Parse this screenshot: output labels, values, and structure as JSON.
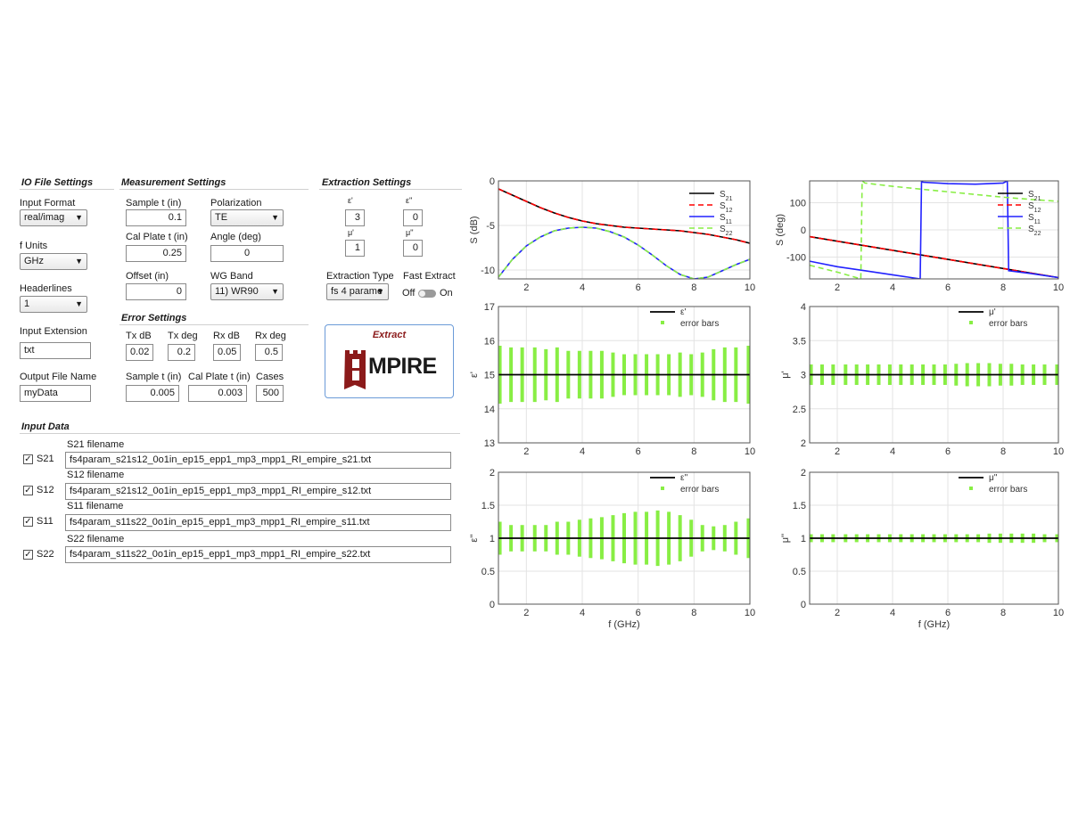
{
  "io": {
    "title": "IO File Settings",
    "input_format_label": "Input Format",
    "input_format_value": "real/imag",
    "f_units_label": "f Units",
    "f_units_value": "GHz",
    "headerlines_label": "Headerlines",
    "headerlines_value": "1",
    "input_ext_label": "Input Extension",
    "input_ext_value": "txt",
    "output_label": "Output File Name",
    "output_value": "myData"
  },
  "meas": {
    "title": "Measurement Settings",
    "sample_t_label": "Sample t (in)",
    "sample_t_value": "0.1",
    "polarization_label": "Polarization",
    "polarization_value": "TE",
    "cal_plate_label": "Cal Plate t (in)",
    "cal_plate_value": "0.25",
    "angle_label": "Angle (deg)",
    "angle_value": "0",
    "offset_label": "Offset (in)",
    "offset_value": "0",
    "wg_band_label": "WG Band",
    "wg_band_value": "11) WR90"
  },
  "err": {
    "title": "Error Settings",
    "txdb_label": "Tx dB",
    "txdb_value": "0.02",
    "txdeg_label": "Tx deg",
    "txdeg_value": "0.2",
    "rxdb_label": "Rx dB",
    "rxdb_value": "0.05",
    "rxdeg_label": "Rx deg",
    "rxdeg_value": "0.5",
    "sample_t_label": "Sample t (in)",
    "sample_t_value": "0.005",
    "cal_plate_label": "Cal Plate t (in)",
    "cal_plate_value": "0.003",
    "cases_label": "Cases",
    "cases_value": "500"
  },
  "ext": {
    "title": "Extraction Settings",
    "eps1_label": "ε'",
    "eps1_value": "3",
    "eps2_label": "ε''",
    "eps2_value": "0",
    "mu1_label": "μ'",
    "mu1_value": "1",
    "mu2_label": "μ''",
    "mu2_value": "0",
    "type_label": "Extraction Type",
    "type_value": "fs 4 parame",
    "fast_label": "Fast Extract",
    "off_label": "Off",
    "on_label": "On",
    "extract_label": "Extract",
    "logo_text": "MPIRE"
  },
  "input_data": {
    "title": "Input Data",
    "rows": [
      {
        "check": "S21",
        "label": "S21 filename",
        "file": "fs4param_s21s12_0o1in_ep15_epp1_mp3_mpp1_RI_empire_s21.txt"
      },
      {
        "check": "S12",
        "label": "S12 filename",
        "file": "fs4param_s21s12_0o1in_ep15_epp1_mp3_mpp1_RI_empire_s12.txt"
      },
      {
        "check": "S11",
        "label": "S11 filename",
        "file": "fs4param_s11s22_0o1in_ep15_epp1_mp3_mpp1_RI_empire_s11.txt"
      },
      {
        "check": "S22",
        "label": "S22 filename",
        "file": "fs4param_s11s22_0o1in_ep15_epp1_mp3_mpp1_RI_empire_s22.txt"
      }
    ]
  },
  "colors": {
    "s21": "#000000",
    "s12": "#ff0000",
    "s11": "#2222ff",
    "s22": "#88ee44",
    "err": "#88ee44"
  },
  "chart_data": [
    {
      "type": "line",
      "ylabel": "S (dB)",
      "xlim": [
        1,
        10
      ],
      "ylim": [
        -11,
        0
      ],
      "xticks": [
        2,
        4,
        6,
        8,
        10
      ],
      "yticks": [
        0,
        -5,
        -10
      ],
      "grid": true,
      "legend": "top-right",
      "legend_names": [
        "S21",
        "S12",
        "S11",
        "S22"
      ],
      "x": [
        1,
        1.5,
        2,
        2.5,
        3,
        3.5,
        4,
        4.5,
        5,
        5.5,
        6,
        6.5,
        7,
        7.5,
        8,
        8.5,
        9,
        9.5,
        10
      ],
      "series": [
        {
          "name": "S21",
          "values": [
            -0.9,
            -1.6,
            -2.3,
            -3.0,
            -3.6,
            -4.1,
            -4.5,
            -4.8,
            -5.0,
            -5.2,
            -5.3,
            -5.4,
            -5.5,
            -5.6,
            -5.8,
            -6.0,
            -6.3,
            -6.6,
            -7.0
          ]
        },
        {
          "name": "S12",
          "values": [
            -0.9,
            -1.6,
            -2.3,
            -3.0,
            -3.6,
            -4.1,
            -4.5,
            -4.8,
            -5.0,
            -5.2,
            -5.3,
            -5.4,
            -5.5,
            -5.6,
            -5.8,
            -6.0,
            -6.3,
            -6.6,
            -7.0
          ]
        },
        {
          "name": "S11",
          "values": [
            -10.8,
            -8.8,
            -7.3,
            -6.3,
            -5.6,
            -5.3,
            -5.2,
            -5.3,
            -5.7,
            -6.3,
            -7.2,
            -8.3,
            -9.5,
            -10.5,
            -11.0,
            -10.8,
            -10.1,
            -9.4,
            -8.8
          ]
        },
        {
          "name": "S22",
          "values": [
            -10.8,
            -8.8,
            -7.3,
            -6.3,
            -5.6,
            -5.3,
            -5.2,
            -5.3,
            -5.7,
            -6.3,
            -7.2,
            -8.3,
            -9.5,
            -10.5,
            -11.0,
            -10.8,
            -10.1,
            -9.4,
            -8.8
          ]
        }
      ]
    },
    {
      "type": "line",
      "ylabel": "S (deg)",
      "xlim": [
        1,
        10
      ],
      "ylim": [
        -180,
        180
      ],
      "xticks": [
        2,
        4,
        6,
        8,
        10
      ],
      "yticks": [
        100,
        0,
        -100
      ],
      "grid": true,
      "legend": "top-right",
      "legend_names": [
        "S21",
        "S12",
        "S11",
        "S22"
      ],
      "series": [
        {
          "name": "S21",
          "x": [
            1,
            10
          ],
          "values": [
            -25,
            -175
          ]
        },
        {
          "name": "S12",
          "x": [
            1,
            10
          ],
          "values": [
            -25,
            -175
          ]
        },
        {
          "name": "S11",
          "x": [
            1,
            2,
            3,
            4,
            5,
            5.05,
            5.1,
            6,
            7,
            8,
            8.15,
            8.2,
            9,
            10
          ],
          "values": [
            -115,
            -135,
            -150,
            -165,
            -180,
            180,
            175,
            170,
            168,
            172,
            180,
            -150,
            -160,
            -175
          ]
        },
        {
          "name": "S22",
          "x": [
            1,
            2,
            2.85,
            2.9,
            3,
            4,
            5,
            6,
            7,
            8,
            9,
            10
          ],
          "values": [
            -130,
            -155,
            -180,
            180,
            172,
            160,
            150,
            140,
            130,
            120,
            112,
            105
          ]
        }
      ]
    },
    {
      "type": "scatter",
      "ylabel": "ε'",
      "xlim": [
        1,
        10
      ],
      "ylim": [
        13,
        17
      ],
      "xticks": [
        2,
        4,
        6,
        8,
        10
      ],
      "yticks": [
        13,
        14,
        15,
        16,
        17
      ],
      "grid": true,
      "legend": "top-right",
      "legend_names": [
        "ε'",
        "error bars"
      ],
      "line_value": 15,
      "x": [
        1.05,
        1.45,
        1.85,
        2.3,
        2.7,
        3.1,
        3.5,
        3.9,
        4.3,
        4.7,
        5.1,
        5.5,
        5.9,
        6.3,
        6.7,
        7.1,
        7.5,
        7.9,
        8.3,
        8.7,
        9.1,
        9.5,
        9.95
      ],
      "err": [
        0.85,
        0.8,
        0.8,
        0.8,
        0.75,
        0.8,
        0.7,
        0.7,
        0.7,
        0.7,
        0.65,
        0.6,
        0.6,
        0.6,
        0.6,
        0.6,
        0.65,
        0.6,
        0.65,
        0.75,
        0.8,
        0.8,
        0.85
      ]
    },
    {
      "type": "scatter",
      "ylabel": "μ'",
      "xlim": [
        1,
        10
      ],
      "ylim": [
        2,
        4
      ],
      "xticks": [
        2,
        4,
        6,
        8,
        10
      ],
      "yticks": [
        2,
        2.5,
        3,
        3.5,
        4
      ],
      "grid": true,
      "legend": "top-right",
      "legend_names": [
        "μ'",
        "error bars"
      ],
      "line_value": 3,
      "x": [
        1.05,
        1.45,
        1.85,
        2.3,
        2.7,
        3.1,
        3.5,
        3.9,
        4.3,
        4.7,
        5.1,
        5.5,
        5.9,
        6.3,
        6.7,
        7.1,
        7.5,
        7.9,
        8.3,
        8.7,
        9.1,
        9.5,
        9.95
      ],
      "err": [
        0.15,
        0.15,
        0.15,
        0.15,
        0.15,
        0.15,
        0.15,
        0.15,
        0.15,
        0.15,
        0.15,
        0.15,
        0.15,
        0.16,
        0.17,
        0.17,
        0.17,
        0.16,
        0.16,
        0.15,
        0.15,
        0.15,
        0.15
      ]
    },
    {
      "type": "scatter",
      "ylabel": "ε''",
      "xlabel": "f (GHz)",
      "xlim": [
        1,
        10
      ],
      "ylim": [
        0,
        2
      ],
      "xticks": [
        2,
        4,
        6,
        8,
        10
      ],
      "yticks": [
        0,
        0.5,
        1,
        1.5,
        2
      ],
      "grid": true,
      "legend": "top-right",
      "legend_names": [
        "ε''",
        "error bars"
      ],
      "line_value": 1,
      "x": [
        1.05,
        1.45,
        1.85,
        2.3,
        2.7,
        3.1,
        3.5,
        3.9,
        4.3,
        4.7,
        5.1,
        5.5,
        5.9,
        6.3,
        6.7,
        7.1,
        7.5,
        7.9,
        8.3,
        8.7,
        9.1,
        9.5,
        9.95
      ],
      "err": [
        0.25,
        0.2,
        0.2,
        0.2,
        0.2,
        0.25,
        0.25,
        0.28,
        0.3,
        0.32,
        0.35,
        0.38,
        0.4,
        0.4,
        0.42,
        0.4,
        0.35,
        0.28,
        0.2,
        0.18,
        0.2,
        0.25,
        0.3
      ]
    },
    {
      "type": "scatter",
      "ylabel": "μ''",
      "xlabel": "f (GHz)",
      "xlim": [
        1,
        10
      ],
      "ylim": [
        0,
        2
      ],
      "xticks": [
        2,
        4,
        6,
        8,
        10
      ],
      "yticks": [
        0,
        0.5,
        1,
        1.5,
        2
      ],
      "grid": true,
      "legend": "top-right",
      "legend_names": [
        "μ''",
        "error bars"
      ],
      "line_value": 1,
      "x": [
        1.05,
        1.45,
        1.85,
        2.3,
        2.7,
        3.1,
        3.5,
        3.9,
        4.3,
        4.7,
        5.1,
        5.5,
        5.9,
        6.3,
        6.7,
        7.1,
        7.5,
        7.9,
        8.3,
        8.7,
        9.1,
        9.5,
        9.95
      ],
      "err": [
        0.06,
        0.06,
        0.06,
        0.06,
        0.06,
        0.06,
        0.06,
        0.06,
        0.06,
        0.06,
        0.06,
        0.06,
        0.06,
        0.06,
        0.06,
        0.06,
        0.07,
        0.07,
        0.07,
        0.07,
        0.07,
        0.06,
        0.06
      ]
    }
  ]
}
